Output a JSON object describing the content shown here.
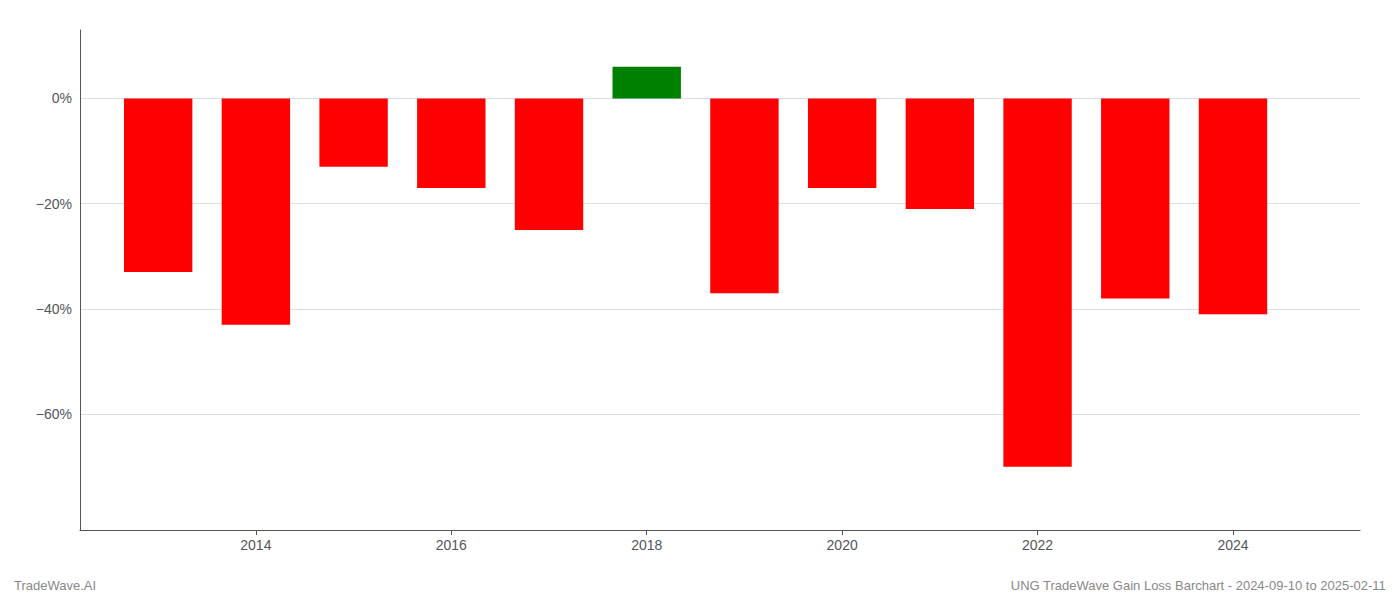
{
  "chart_data": {
    "type": "bar",
    "x": [
      2013,
      2014,
      2015,
      2016,
      2017,
      2018,
      2019,
      2020,
      2021,
      2022,
      2023,
      2024
    ],
    "values": [
      -0.33,
      -0.43,
      -0.13,
      -0.17,
      -0.25,
      0.06,
      -0.37,
      -0.17,
      -0.21,
      -0.7,
      -0.38,
      -0.41
    ],
    "colors": [
      "#FF0000",
      "#FF0000",
      "#FF0000",
      "#FF0000",
      "#FF0000",
      "#008000",
      "#FF0000",
      "#FF0000",
      "#FF0000",
      "#FF0000",
      "#FF0000",
      "#FF0000"
    ],
    "xlim": [
      2012.2,
      2025.3
    ],
    "xticks": [
      2014,
      2016,
      2018,
      2020,
      2022,
      2024
    ],
    "ylim": [
      -0.82,
      0.13
    ],
    "yticks": [
      {
        "value": 0.0,
        "label": "0%"
      },
      {
        "value": -0.2,
        "label": "−20%"
      },
      {
        "value": -0.4,
        "label": "−40%"
      },
      {
        "value": -0.6,
        "label": "−60%"
      }
    ],
    "grid": true,
    "annotations": [
      "TradeWave.AI",
      "UNG TradeWave Gain Loss Barchart - 2024-09-10 to 2025-02-11"
    ]
  }
}
